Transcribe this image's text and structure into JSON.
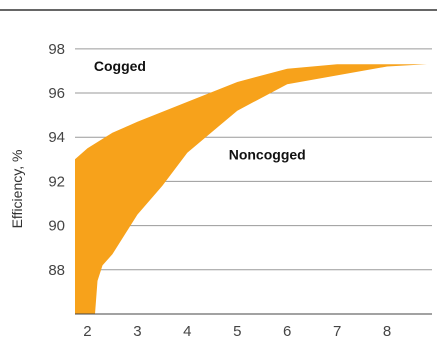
{
  "chart_data": {
    "type": "area",
    "title": "",
    "xlabel": "",
    "ylabel": "Efficiency, %",
    "xlim": [
      1.75,
      8.9
    ],
    "ylim": [
      86,
      98.4
    ],
    "x_ticks": [
      2,
      3,
      4,
      5,
      6,
      7,
      8
    ],
    "y_ticks": [
      88,
      90,
      92,
      94,
      96,
      98
    ],
    "grid": "horizontal",
    "legend": "none",
    "band_color": "#F7A21B",
    "band": {
      "upper": [
        {
          "x": 1.75,
          "y": 93.0
        },
        {
          "x": 2.0,
          "y": 93.5
        },
        {
          "x": 2.5,
          "y": 94.2
        },
        {
          "x": 3.0,
          "y": 94.7
        },
        {
          "x": 4.0,
          "y": 95.6
        },
        {
          "x": 5.0,
          "y": 96.5
        },
        {
          "x": 6.0,
          "y": 97.1
        },
        {
          "x": 7.0,
          "y": 97.3
        },
        {
          "x": 8.0,
          "y": 97.3
        },
        {
          "x": 8.8,
          "y": 97.3
        }
      ],
      "lower": [
        {
          "x": 1.75,
          "y": 86.0
        },
        {
          "x": 2.15,
          "y": 86.0
        },
        {
          "x": 2.2,
          "y": 87.5
        },
        {
          "x": 2.3,
          "y": 88.2
        },
        {
          "x": 2.5,
          "y": 88.7
        },
        {
          "x": 3.0,
          "y": 90.5
        },
        {
          "x": 3.5,
          "y": 91.8
        },
        {
          "x": 4.0,
          "y": 93.3
        },
        {
          "x": 5.0,
          "y": 95.2
        },
        {
          "x": 6.0,
          "y": 96.4
        },
        {
          "x": 7.0,
          "y": 96.8
        },
        {
          "x": 8.0,
          "y": 97.2
        },
        {
          "x": 8.8,
          "y": 97.3
        }
      ]
    },
    "annotations": [
      {
        "text": "Cogged",
        "x": 2.65,
        "y": 97.0
      },
      {
        "text": "Noncogged",
        "x": 5.6,
        "y": 93.0
      }
    ]
  }
}
